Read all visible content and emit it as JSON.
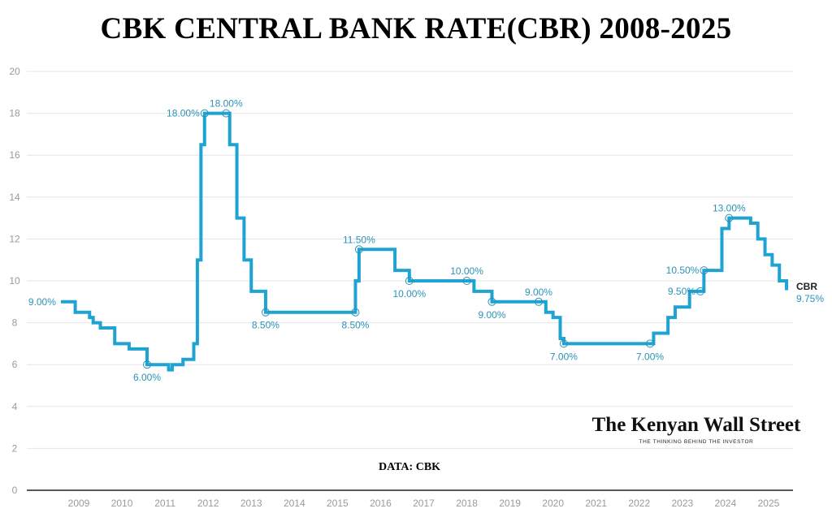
{
  "chart_data": {
    "type": "line",
    "step": true,
    "title": "CBK CENTRAL BANK RATE(CBR) 2008-2025",
    "xlabel": "",
    "ylabel": "",
    "ylim": [
      0,
      20
    ],
    "yticks": [
      0,
      2,
      4,
      6,
      8,
      10,
      12,
      14,
      16,
      18,
      20
    ],
    "xticks": [
      "2009",
      "2010",
      "2011",
      "2012",
      "2013",
      "2014",
      "2015",
      "2016",
      "2017",
      "2018",
      "2019",
      "2020",
      "2021",
      "2022",
      "2023",
      "2024",
      "2025"
    ],
    "grid": true,
    "color": "#1ea3d2",
    "label_color": "#2a93b8",
    "series": [
      {
        "name": "CBR",
        "end_label": "9.75%",
        "points": [
          [
            "2008-08",
            9.0
          ],
          [
            "2008-12",
            8.5
          ],
          [
            "2009-04",
            8.25
          ],
          [
            "2009-05",
            8.0
          ],
          [
            "2009-07",
            7.75
          ],
          [
            "2009-11",
            7.0
          ],
          [
            "2010-03",
            6.75
          ],
          [
            "2010-08",
            6.0
          ],
          [
            "2011-02",
            5.75
          ],
          [
            "2011-03",
            6.0
          ],
          [
            "2011-06",
            6.25
          ],
          [
            "2011-09",
            7.0
          ],
          [
            "2011-10",
            11.0
          ],
          [
            "2011-11",
            16.5
          ],
          [
            "2011-12",
            18.0
          ],
          [
            "2012-07",
            16.5
          ],
          [
            "2012-09",
            13.0
          ],
          [
            "2012-11",
            11.0
          ],
          [
            "2013-01",
            9.5
          ],
          [
            "2013-05",
            8.5
          ],
          [
            "2015-06",
            10.0
          ],
          [
            "2015-07",
            11.5
          ],
          [
            "2016-05",
            10.5
          ],
          [
            "2016-09",
            10.0
          ],
          [
            "2018-03",
            9.5
          ],
          [
            "2018-08",
            9.0
          ],
          [
            "2019-11",
            8.5
          ],
          [
            "2020-01",
            8.25
          ],
          [
            "2020-03",
            7.25
          ],
          [
            "2020-04",
            7.0
          ],
          [
            "2022-05",
            7.5
          ],
          [
            "2022-09",
            8.25
          ],
          [
            "2022-11",
            8.75
          ],
          [
            "2023-03",
            9.5
          ],
          [
            "2023-07",
            10.5
          ],
          [
            "2023-12",
            12.5
          ],
          [
            "2024-02",
            13.0
          ],
          [
            "2024-08",
            12.75
          ],
          [
            "2024-10",
            12.0
          ],
          [
            "2024-12",
            11.25
          ],
          [
            "2025-02",
            10.75
          ],
          [
            "2025-04",
            10.0
          ],
          [
            "2025-06",
            9.75
          ],
          [
            "2025-06",
            9.75
          ]
        ]
      }
    ],
    "annotations": [
      {
        "date": "2008-08",
        "value": 9.0,
        "text": "9.00%",
        "pos": "left",
        "marker": false
      },
      {
        "date": "2010-08",
        "value": 6.0,
        "text": "6.00%",
        "pos": "below",
        "marker": true
      },
      {
        "date": "2011-12",
        "value": 18.0,
        "text": "18.00%",
        "pos": "left",
        "marker": true
      },
      {
        "date": "2012-06",
        "value": 18.0,
        "text": "18.00%",
        "pos": "above",
        "marker": true
      },
      {
        "date": "2013-05",
        "value": 8.5,
        "text": "8.50%",
        "pos": "below",
        "marker": true
      },
      {
        "date": "2015-06",
        "value": 8.5,
        "text": "8.50%",
        "pos": "below",
        "marker": true
      },
      {
        "date": "2015-07",
        "value": 11.5,
        "text": "11.50%",
        "pos": "above",
        "marker": true
      },
      {
        "date": "2016-09",
        "value": 10.0,
        "text": "10.00%",
        "pos": "below",
        "marker": true
      },
      {
        "date": "2018-01",
        "value": 10.0,
        "text": "10.00%",
        "pos": "above",
        "marker": true
      },
      {
        "date": "2018-08",
        "value": 9.0,
        "text": "9.00%",
        "pos": "below",
        "marker": true
      },
      {
        "date": "2019-09",
        "value": 9.0,
        "text": "9.00%",
        "pos": "above",
        "marker": true
      },
      {
        "date": "2020-04",
        "value": 7.0,
        "text": "7.00%",
        "pos": "below",
        "marker": true
      },
      {
        "date": "2022-04",
        "value": 7.0,
        "text": "7.00%",
        "pos": "below",
        "marker": true
      },
      {
        "date": "2023-06",
        "value": 9.5,
        "text": "9.50%",
        "pos": "left",
        "marker": true
      },
      {
        "date": "2023-07",
        "value": 10.5,
        "text": "10.50%",
        "pos": "left",
        "marker": true
      },
      {
        "date": "2024-02",
        "value": 13.0,
        "text": "13.00%",
        "pos": "above",
        "marker": true
      }
    ],
    "source": "DATA: CBK"
  },
  "logo": {
    "name": "The Kenyan Wall Street",
    "tagline": "THE THINKING BEHIND THE INVESTOR"
  }
}
